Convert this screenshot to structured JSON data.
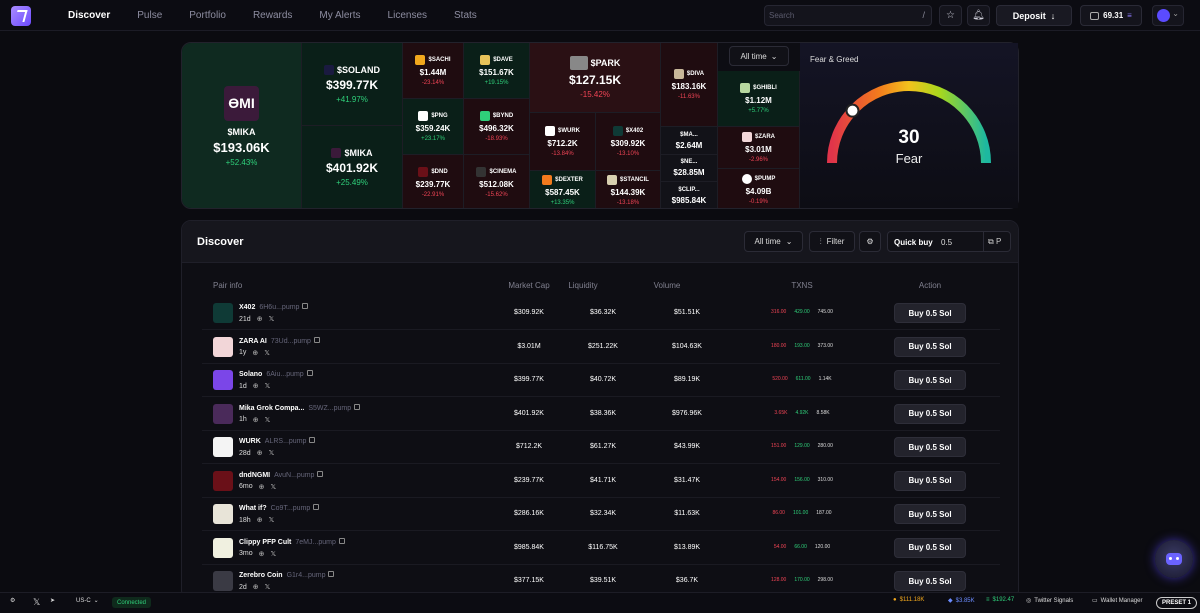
{
  "nav": {
    "links": [
      "Discover",
      "Pulse",
      "Portfolio",
      "Rewards",
      "My Alerts",
      "Licenses",
      "Stats"
    ],
    "search_placeholder": "Search",
    "search_shortcut": "/",
    "deposit": "Deposit",
    "wallet_balance": "69.31"
  },
  "heatmap": {
    "time_filter": "All time",
    "tiles": [
      {
        "name": "$MIKA",
        "cap": "$193.06K",
        "change": "+52.43%"
      },
      {
        "name": "$SOLAND",
        "cap": "$399.77K",
        "change": "+41.97%"
      },
      {
        "name": "$MIKA",
        "cap": "$401.92K",
        "change": "+25.49%"
      },
      {
        "name": "$SACHI",
        "cap": "$1.44M",
        "change": "-23.14%"
      },
      {
        "name": "$PNG",
        "cap": "$359.24K",
        "change": "+23.17%"
      },
      {
        "name": "$DND",
        "cap": "$239.77K",
        "change": "-22.91%"
      },
      {
        "name": "$DAVE",
        "cap": "$151.67K",
        "change": "+19.15%"
      },
      {
        "name": "$BYND",
        "cap": "$496.32K",
        "change": "-18.93%"
      },
      {
        "name": "$CINEMA",
        "cap": "$512.08K",
        "change": "-15.62%"
      },
      {
        "name": "$PARK",
        "cap": "$127.15K",
        "change": "-15.42%"
      },
      {
        "name": "$WURK",
        "cap": "$712.2K",
        "change": "-13.84%"
      },
      {
        "name": "$X402",
        "cap": "$309.92K",
        "change": "-13.10%"
      },
      {
        "name": "$DEXTER",
        "cap": "$587.45K",
        "change": "+13.35%"
      },
      {
        "name": "$STANCIL",
        "cap": "$144.39K",
        "change": "-13.18%"
      },
      {
        "name": "$DIVA",
        "cap": "$183.16K",
        "change": "-11.63%"
      },
      {
        "name": "$MA...",
        "cap": "$2.64M",
        "change": ""
      },
      {
        "name": "$NE...",
        "cap": "$28.85M",
        "change": ""
      },
      {
        "name": "$CLIP...",
        "cap": "$985.84K",
        "change": ""
      },
      {
        "name": "$GHIBLI",
        "cap": "$1.12M",
        "change": "+5.77%"
      },
      {
        "name": "$ZARA",
        "cap": "$3.01M",
        "change": "-2.96%"
      },
      {
        "name": "$PUMP",
        "cap": "$4.09B",
        "change": "-0.19%"
      }
    ]
  },
  "fear_greed": {
    "title": "Fear & Greed",
    "value": "30",
    "label": "Fear",
    "level": 0.3
  },
  "discover": {
    "title": "Discover",
    "time_filter": "All time",
    "filter_label": "Filter",
    "quick_buy_label": "Quick buy",
    "quick_buy_value": "0.5",
    "quick_buy_preset": "P",
    "columns": [
      "Pair info",
      "Market Cap",
      "Liquidity",
      "Volume",
      "TXNS",
      "Action"
    ],
    "rows": [
      {
        "name": "X402",
        "addr": "6H6u...pump",
        "age": "21d",
        "mcap": "$309.92K",
        "liq": "$36.32K",
        "vol": "$51.51K",
        "sells": "316.00",
        "buys": "429.00",
        "total": "745.00",
        "buy": "Buy 0.5 Sol",
        "color": "#0f3a36"
      },
      {
        "name": "ZARA AI",
        "addr": "73Ud...pump",
        "age": "1y",
        "mcap": "$3.01M",
        "liq": "$251.22K",
        "vol": "$104.63K",
        "sells": "180.00",
        "buys": "193.00",
        "total": "373.00",
        "buy": "Buy 0.5 Sol",
        "color": "#f2d6d8"
      },
      {
        "name": "Solano",
        "addr": "6Aiu...pump",
        "age": "1d",
        "mcap": "$399.77K",
        "liq": "$40.72K",
        "vol": "$89.19K",
        "sells": "520.00",
        "buys": "611.00",
        "total": "1.14K",
        "buy": "Buy 0.5 Sol",
        "color": "#7b46e8"
      },
      {
        "name": "Mika Grok Compa...",
        "addr": "S5WZ...pump",
        "age": "1h",
        "mcap": "$401.92K",
        "liq": "$38.36K",
        "vol": "$976.96K",
        "sells": "3.65K",
        "buys": "4.92K",
        "total": "8.58K",
        "buy": "Buy 0.5 Sol",
        "color": "#4a2a5a"
      },
      {
        "name": "WURK",
        "addr": "ALRS...pump",
        "age": "28d",
        "mcap": "$712.2K",
        "liq": "$61.27K",
        "vol": "$43.99K",
        "sells": "151.00",
        "buys": "129.00",
        "total": "280.00",
        "buy": "Buy 0.5 Sol",
        "color": "#f4f4f4"
      },
      {
        "name": "dndNGMI",
        "addr": "AvuN...pump",
        "age": "6mo",
        "mcap": "$239.77K",
        "liq": "$41.71K",
        "vol": "$31.47K",
        "sells": "154.00",
        "buys": "156.00",
        "total": "310.00",
        "buy": "Buy 0.5 Sol",
        "color": "#6a1018"
      },
      {
        "name": "What if?",
        "addr": "Co9T...pump",
        "age": "18h",
        "mcap": "$286.16K",
        "liq": "$32.34K",
        "vol": "$11.63K",
        "sells": "86.00",
        "buys": "101.00",
        "total": "187.00",
        "buy": "Buy 0.5 Sol",
        "color": "#e8e4d8"
      },
      {
        "name": "Clippy PFP Cult",
        "addr": "7eMJ...pump",
        "age": "3mo",
        "mcap": "$985.84K",
        "liq": "$116.75K",
        "vol": "$13.89K",
        "sells": "54.00",
        "buys": "66.00",
        "total": "120.00",
        "buy": "Buy 0.5 Sol",
        "color": "#f0f0e0"
      },
      {
        "name": "Zerebro Coin",
        "addr": "G1r4...pump",
        "age": "2d",
        "mcap": "$377.15K",
        "liq": "$39.51K",
        "vol": "$36.7K",
        "sells": "128.00",
        "buys": "170.00",
        "total": "298.00",
        "buy": "Buy 0.5 Sol",
        "color": "#3a3a44"
      }
    ]
  },
  "footer": {
    "region": "US-C",
    "status": "Connected",
    "btc": "$111.18K",
    "eth": "$3.85K",
    "sol": "$192.47",
    "twitter": "Twitter Signals",
    "wallet_manager": "Wallet Manager",
    "preset": "PRESET 1"
  }
}
